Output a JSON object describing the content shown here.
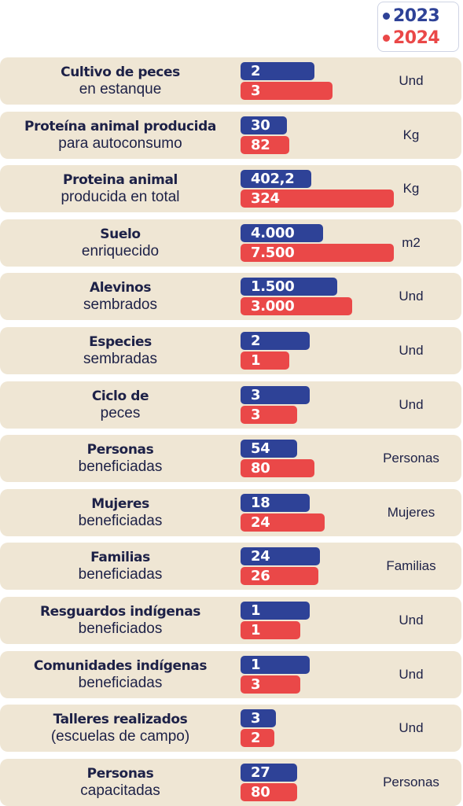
{
  "legend": [
    {
      "label": "2023",
      "color": "#2e4297"
    },
    {
      "label": "2024",
      "color": "#ea4848"
    }
  ],
  "chart_data": {
    "type": "bar",
    "orientation": "horizontal",
    "series": [
      {
        "name": "2023",
        "color": "#2e4297"
      },
      {
        "name": "2024",
        "color": "#ea4848"
      }
    ],
    "rows": [
      {
        "line1": "Cultivo de peces",
        "line2": "en estanque",
        "unit": "Und",
        "v2023": "2",
        "v2024": "3",
        "fill2023": 0.48,
        "fill2024": 0.6
      },
      {
        "line1": "Proteína animal producida",
        "line2": "para autoconsumo",
        "unit": "Kg",
        "v2023": "30",
        "v2024": "82",
        "fill2023": 0.3,
        "fill2024": 0.32
      },
      {
        "line1": "Proteina animal",
        "line2": "producida en total",
        "unit": "Kg",
        "v2023": "402,2",
        "v2024": "324",
        "fill2023": 0.46,
        "fill2024": 1.0
      },
      {
        "line1": "Suelo",
        "line2": "enriquecido",
        "unit": "m2",
        "v2023": "4.000",
        "v2024": "7.500",
        "fill2023": 0.54,
        "fill2024": 1.0
      },
      {
        "line1": "Alevinos",
        "line2": "sembrados",
        "unit": "Und",
        "v2023": "1.500",
        "v2024": "3.000",
        "fill2023": 0.63,
        "fill2024": 0.73
      },
      {
        "line1": "Especies",
        "line2": "sembradas",
        "unit": "Und",
        "v2023": "2",
        "v2024": "1",
        "fill2023": 0.45,
        "fill2024": 0.32
      },
      {
        "line1": "Ciclo de",
        "line2": "peces",
        "unit": "Und",
        "v2023": "3",
        "v2024": "3",
        "fill2023": 0.45,
        "fill2024": 0.37
      },
      {
        "line1": "Personas",
        "line2": "beneficiadas",
        "unit": "Personas",
        "v2023": "54",
        "v2024": "80",
        "fill2023": 0.37,
        "fill2024": 0.48
      },
      {
        "line1": "Mujeres",
        "line2": "beneficiadas",
        "unit": "Mujeres",
        "v2023": "18",
        "v2024": "24",
        "fill2023": 0.45,
        "fill2024": 0.55
      },
      {
        "line1": "Familias",
        "line2": "beneficiadas",
        "unit": "Familias",
        "v2023": "24",
        "v2024": "26",
        "fill2023": 0.52,
        "fill2024": 0.51
      },
      {
        "line1": "Resguardos indígenas",
        "line2": "beneficiados",
        "unit": "Und",
        "v2023": "1",
        "v2024": "1",
        "fill2023": 0.45,
        "fill2024": 0.39
      },
      {
        "line1": "Comunidades indígenas",
        "line2": "beneficiadas",
        "unit": "Und",
        "v2023": "1",
        "v2024": "3",
        "fill2023": 0.45,
        "fill2024": 0.39
      },
      {
        "line1": "Talleres realizados",
        "line2": "(escuelas de campo)",
        "unit": "Und",
        "v2023": "3",
        "v2024": "2",
        "fill2023": 0.23,
        "fill2024": 0.22
      },
      {
        "line1": "Personas",
        "line2": "capacitadas",
        "unit": "Personas",
        "v2023": "27",
        "v2024": "80",
        "fill2023": 0.37,
        "fill2024": 0.37
      }
    ]
  }
}
